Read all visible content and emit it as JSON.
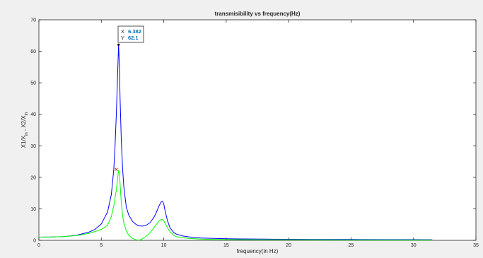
{
  "chart_data": {
    "type": "line",
    "title": "transmisibility vs frequency(Hz)",
    "xlabel": "frequency(in Hz)",
    "ylabel": "X1/X_{in} , X2/X_{in}",
    "xlim": [
      0,
      35
    ],
    "ylim": [
      0,
      70
    ],
    "xticks": [
      0,
      5,
      10,
      15,
      20,
      25,
      30,
      35
    ],
    "yticks": [
      0,
      10,
      20,
      30,
      40,
      50,
      60,
      70
    ],
    "grid": false,
    "series": [
      {
        "color": "#0000ff",
        "x": [
          0,
          1,
          2,
          3,
          4,
          4.5,
          5,
          5.5,
          5.8,
          6.0,
          6.1,
          6.2,
          6.3,
          6.382,
          6.45,
          6.5,
          6.6,
          6.7,
          6.8,
          7.0,
          7.2,
          7.5,
          7.8,
          8.0,
          8.3,
          8.6,
          8.9,
          9.2,
          9.4,
          9.6,
          9.8,
          9.9,
          10.0,
          10.1,
          10.3,
          10.5,
          10.8,
          11.0,
          11.5,
          12,
          13,
          14,
          15,
          16,
          18,
          20,
          22,
          25,
          28,
          30,
          31.5
        ],
        "y": [
          1.0,
          1.05,
          1.2,
          1.6,
          2.6,
          3.5,
          5.2,
          9.0,
          14.5,
          22.5,
          30.0,
          40.0,
          52.0,
          62.1,
          55.0,
          45.0,
          32.0,
          23.0,
          17.0,
          10.5,
          8.0,
          6.0,
          5.0,
          4.6,
          4.5,
          4.8,
          5.6,
          7.2,
          8.8,
          10.8,
          12.2,
          12.4,
          11.5,
          9.5,
          6.2,
          4.0,
          2.5,
          2.0,
          1.4,
          1.1,
          0.75,
          0.6,
          0.5,
          0.45,
          0.38,
          0.33,
          0.3,
          0.26,
          0.23,
          0.22,
          0.21
        ]
      },
      {
        "color": "#00ff00",
        "x": [
          0,
          1,
          2,
          3,
          4,
          4.5,
          5,
          5.5,
          5.8,
          6.0,
          6.2,
          6.382,
          6.45,
          6.5,
          6.6,
          6.7,
          6.8,
          7.0,
          7.2,
          7.5,
          7.8,
          8.0,
          8.2,
          8.5,
          8.8,
          9.1,
          9.4,
          9.6,
          9.8,
          9.9,
          10.0,
          10.1,
          10.3,
          10.5,
          10.8,
          11.0,
          11.5,
          12,
          13,
          14,
          15,
          16,
          18,
          20,
          22,
          25,
          28,
          30,
          31.5
        ],
        "y": [
          1.0,
          1.05,
          1.2,
          1.5,
          2.2,
          2.8,
          3.5,
          4.8,
          7.5,
          11.0,
          16.0,
          22.3,
          21.0,
          18.0,
          12.0,
          8.0,
          5.5,
          3.0,
          1.6,
          0.6,
          0.15,
          0.05,
          0.3,
          1.0,
          2.0,
          3.4,
          5.0,
          6.0,
          6.7,
          6.6,
          6.2,
          5.5,
          4.0,
          2.7,
          1.6,
          1.2,
          0.8,
          0.6,
          0.4,
          0.3,
          0.25,
          0.22,
          0.18,
          0.15,
          0.13,
          0.11,
          0.1,
          0.1,
          0.1
        ]
      }
    ],
    "markers": [
      {
        "color": "#000000",
        "x": 6.382,
        "y": 62.1
      },
      {
        "color": "#ff0000",
        "x": 6.2,
        "y": 22.5
      }
    ],
    "datatip": {
      "x_label": "X",
      "x_value": "6.382",
      "y_label": "Y",
      "y_value": "62.1",
      "value_color": "#0072bd"
    }
  }
}
